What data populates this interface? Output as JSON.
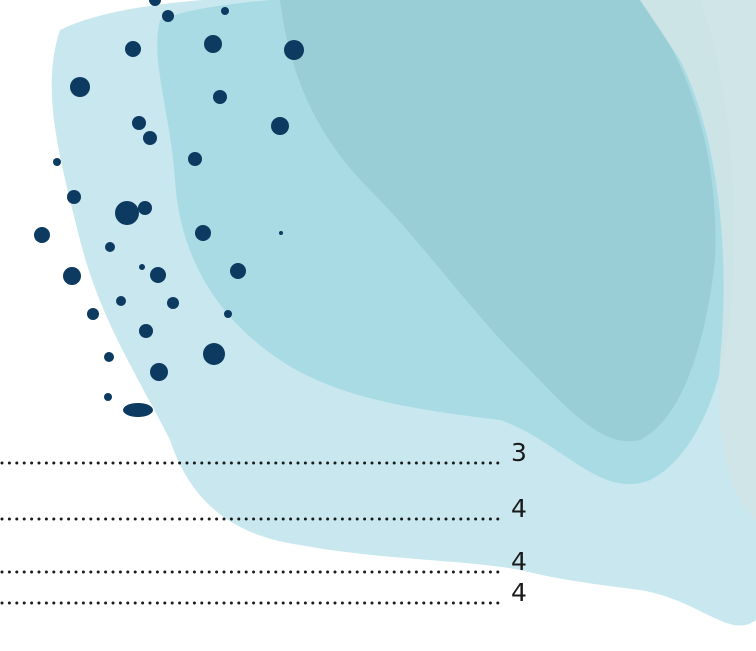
{
  "toc": {
    "entries": [
      {
        "page": 3
      },
      {
        "page": 4
      },
      {
        "page": 4
      },
      {
        "page": 4
      }
    ]
  }
}
